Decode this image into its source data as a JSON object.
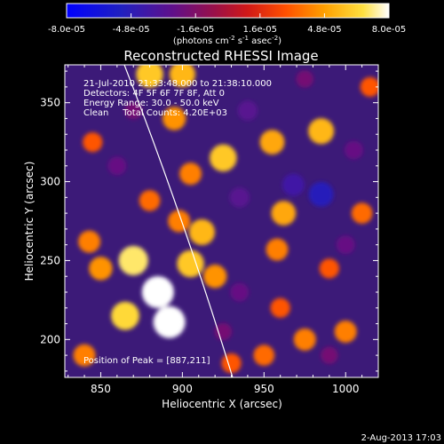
{
  "chart_data": {
    "type": "heatmap",
    "title": "Reconstructed RHESSI Image",
    "xlabel": "Heliocentric X (arcsec)",
    "ylabel": "Heliocentric Y (arcsec)",
    "xlim": [
      828,
      1020
    ],
    "ylim": [
      176,
      374
    ],
    "x_ticks": [
      850,
      900,
      950,
      1000
    ],
    "y_ticks": [
      200,
      250,
      300,
      350
    ],
    "colorbar": {
      "ticks": [
        "-8.0e-05",
        "-4.8e-05",
        "-1.6e-05",
        "1.6e-05",
        "4.8e-05",
        "8.0e-05"
      ],
      "values": [
        -8e-05,
        -4.8e-05,
        -1.6e-05,
        1.6e-05,
        4.8e-05,
        8e-05
      ],
      "unit_label": {
        "base": "(photons cm",
        "exp1": "-2",
        "mid1": " s",
        "exp2": "-1",
        "mid2": " asec",
        "exp3": "-2",
        "end": ")"
      }
    },
    "annotations": {
      "time": "21-Jul-2010 21:33:48.000 to 21:38:10.000",
      "detectors": "Detectors: 4F 5F 6F 7F 8F, Att 0",
      "energy": "Energy Range: 30.0 - 50.0 keV",
      "clean": "Clean     Total Counts: 4.20E+03",
      "peak": "Position of Peak = [887,211]"
    },
    "footer_date": "2-Aug-2013 17:03",
    "blobs": [
      {
        "x": 870,
        "y": 250,
        "value": 7e-05
      },
      {
        "x": 885,
        "y": 230,
        "value": 8e-05
      },
      {
        "x": 892,
        "y": 211,
        "value": 8e-05
      },
      {
        "x": 865,
        "y": 215,
        "value": 6.5e-05
      },
      {
        "x": 905,
        "y": 248,
        "value": 6e-05
      },
      {
        "x": 912,
        "y": 268,
        "value": 5.5e-05
      },
      {
        "x": 920,
        "y": 240,
        "value": 4.5e-05
      },
      {
        "x": 843,
        "y": 262,
        "value": 4e-05
      },
      {
        "x": 850,
        "y": 245,
        "value": 4.5e-05
      },
      {
        "x": 898,
        "y": 275,
        "value": 4e-05
      },
      {
        "x": 880,
        "y": 288,
        "value": 3.5e-05
      },
      {
        "x": 905,
        "y": 305,
        "value": 4e-05
      },
      {
        "x": 895,
        "y": 340,
        "value": 4.5e-05
      },
      {
        "x": 880,
        "y": 368,
        "value": 6e-05
      },
      {
        "x": 900,
        "y": 368,
        "value": 5.5e-05
      },
      {
        "x": 925,
        "y": 315,
        "value": 6e-05
      },
      {
        "x": 955,
        "y": 325,
        "value": 5e-05
      },
      {
        "x": 962,
        "y": 280,
        "value": 5e-05
      },
      {
        "x": 958,
        "y": 257,
        "value": 4e-05
      },
      {
        "x": 985,
        "y": 332,
        "value": 5.5e-05
      },
      {
        "x": 1010,
        "y": 280,
        "value": 3.5e-05
      },
      {
        "x": 990,
        "y": 245,
        "value": 3e-05
      },
      {
        "x": 975,
        "y": 200,
        "value": 4e-05
      },
      {
        "x": 950,
        "y": 190,
        "value": 3.5e-05
      },
      {
        "x": 960,
        "y": 220,
        "value": 3e-05
      },
      {
        "x": 1000,
        "y": 205,
        "value": 4e-05
      },
      {
        "x": 840,
        "y": 190,
        "value": 4e-05
      },
      {
        "x": 930,
        "y": 185,
        "value": 3e-05
      },
      {
        "x": 1015,
        "y": 360,
        "value": 3e-05
      },
      {
        "x": 845,
        "y": 325,
        "value": 3e-05
      },
      {
        "x": 985,
        "y": 292,
        "value": -5e-05
      },
      {
        "x": 968,
        "y": 298,
        "value": -4e-05
      },
      {
        "x": 935,
        "y": 290,
        "value": -3e-05
      },
      {
        "x": 940,
        "y": 345,
        "value": -3e-05
      },
      {
        "x": 1005,
        "y": 320,
        "value": -2.5e-05
      },
      {
        "x": 1000,
        "y": 260,
        "value": -2.5e-05
      },
      {
        "x": 935,
        "y": 230,
        "value": -2.5e-05
      },
      {
        "x": 860,
        "y": 310,
        "value": -2.5e-05
      },
      {
        "x": 975,
        "y": 365,
        "value": -2e-05
      },
      {
        "x": 870,
        "y": 345,
        "value": -2e-05
      },
      {
        "x": 925,
        "y": 205,
        "value": -2e-05
      },
      {
        "x": 990,
        "y": 190,
        "value": -2e-05
      }
    ]
  }
}
